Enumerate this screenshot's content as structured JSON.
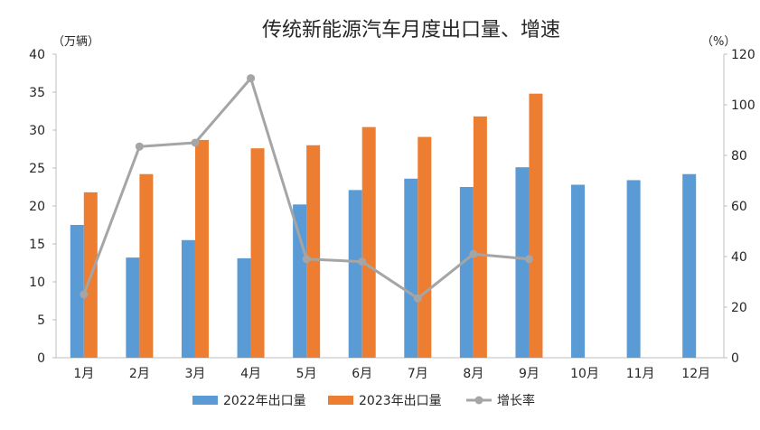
{
  "chart_data": {
    "type": "bar",
    "title": "传统新能源汽车月度出口量、增速",
    "left_unit": "（万辆）",
    "right_unit": "（%）",
    "categories": [
      "1月",
      "2月",
      "3月",
      "4月",
      "5月",
      "6月",
      "7月",
      "8月",
      "9月",
      "10月",
      "11月",
      "12月"
    ],
    "left_axis": {
      "min": 0,
      "max": 40,
      "ticks": [
        "0",
        "5",
        "10",
        "15",
        "20",
        "25",
        "30",
        "35",
        "40"
      ]
    },
    "right_axis": {
      "min": 0,
      "max": 120,
      "ticks": [
        "0",
        "20",
        "40",
        "60",
        "80",
        "100",
        "120"
      ]
    },
    "series": [
      {
        "name": "2022年出口量",
        "type": "bar",
        "axis": "left",
        "color": "#5b9bd5",
        "values": [
          17.5,
          13.2,
          15.5,
          13.1,
          20.2,
          22.1,
          23.6,
          22.5,
          25.1,
          22.8,
          23.4,
          24.2
        ]
      },
      {
        "name": "2023年出口量",
        "type": "bar",
        "axis": "left",
        "color": "#ed7d31",
        "values": [
          21.8,
          24.2,
          28.7,
          27.6,
          28.0,
          30.4,
          29.1,
          31.8,
          34.8,
          null,
          null,
          null
        ]
      },
      {
        "name": "增长率",
        "type": "line",
        "axis": "right",
        "color": "#a5a5a5",
        "values": [
          25,
          83.5,
          85,
          110.5,
          39,
          38,
          23.5,
          41,
          39,
          null,
          null,
          null
        ]
      }
    ],
    "legend_position": "bottom",
    "grid": false
  }
}
